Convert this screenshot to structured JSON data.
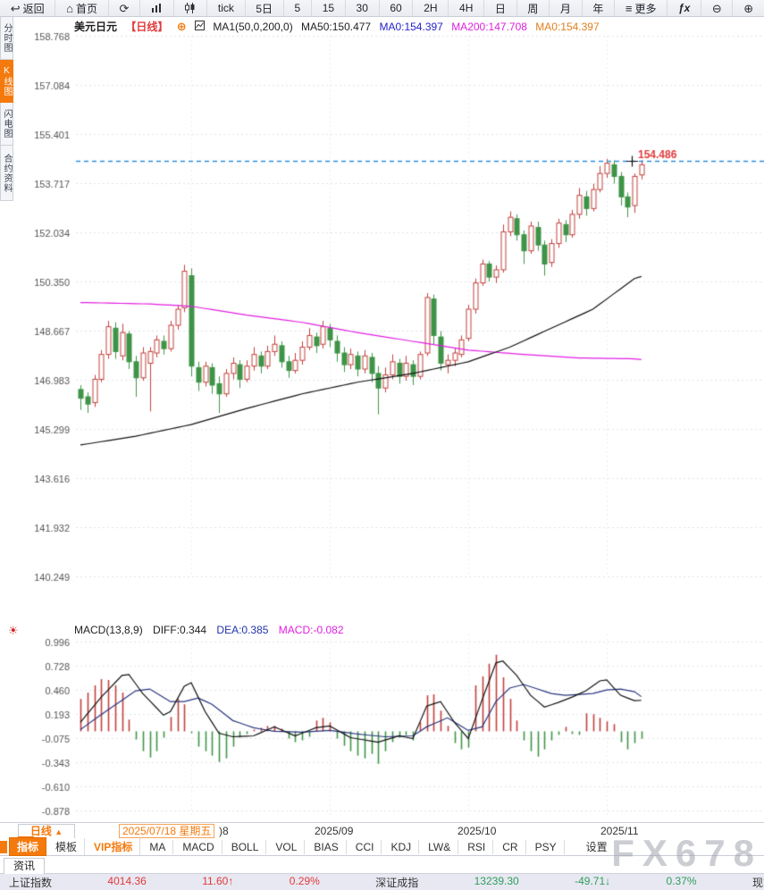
{
  "toolbar": {
    "items": [
      {
        "label": "返回",
        "icon": "back-arrow",
        "name": "back-button"
      },
      {
        "label": "首页",
        "icon": "home",
        "name": "home-button"
      },
      {
        "label": "",
        "icon": "refresh",
        "name": "refresh-button"
      },
      {
        "label": "",
        "icon": "bar-chart",
        "name": "bar-chart-button"
      },
      {
        "label": "",
        "icon": "candlestick",
        "name": "candlestick-button"
      },
      {
        "label": "tick",
        "icon": "",
        "name": "period-tick-button"
      },
      {
        "label": "5日",
        "icon": "",
        "name": "period-5d-button"
      },
      {
        "label": "5",
        "icon": "",
        "name": "period-5m-button"
      },
      {
        "label": "15",
        "icon": "",
        "name": "period-15m-button"
      },
      {
        "label": "30",
        "icon": "",
        "name": "period-30m-button"
      },
      {
        "label": "60",
        "icon": "",
        "name": "period-60m-button"
      },
      {
        "label": "2H",
        "icon": "",
        "name": "period-2h-button"
      },
      {
        "label": "4H",
        "icon": "",
        "name": "period-4h-button"
      },
      {
        "label": "日",
        "icon": "",
        "name": "period-day-button"
      },
      {
        "label": "周",
        "icon": "",
        "name": "period-week-button"
      },
      {
        "label": "月",
        "icon": "",
        "name": "period-month-button"
      },
      {
        "label": "年",
        "icon": "",
        "name": "period-year-button"
      },
      {
        "label": "更多",
        "icon": "menu",
        "name": "more-button"
      },
      {
        "label": "fx",
        "icon": "fx",
        "name": "formula-button"
      },
      {
        "label": "",
        "icon": "zoom-out",
        "name": "zoom-out-button"
      },
      {
        "label": "",
        "icon": "zoom-in",
        "name": "zoom-in-button"
      }
    ]
  },
  "left_rail": {
    "tabs": [
      {
        "label": "分时图",
        "active": false
      },
      {
        "label": "K线图",
        "active": true
      },
      {
        "label": "闪电图",
        "active": false
      },
      {
        "label": "合约资料",
        "active": false
      }
    ]
  },
  "main_header": {
    "symbol": "美元日元",
    "period": "【日线】",
    "plus": "⊕",
    "ma_settings": "MA1(50,0,200,0)",
    "ma50": "MA50:150.477",
    "ma0_blue": "MA0:154.397",
    "ma200": "MA200:147.708",
    "ma0_orange": "MA0:154.397"
  },
  "macd_header": {
    "title": "MACD(13,8,9)",
    "diff": "DIFF:0.344",
    "dea": "DEA:0.385",
    "macd": "MACD:-0.082"
  },
  "price_marker": {
    "value": "154.486"
  },
  "bottom_axis": {
    "period_button": "日线",
    "period_arrow": "▲",
    "date_box": "2025/07/18 星期五",
    "partial_label": ")8",
    "months": [
      {
        "label": "2025/09"
      },
      {
        "label": "2025/10"
      },
      {
        "label": "2025/11"
      }
    ]
  },
  "indicator_tabs": {
    "items": [
      {
        "label": "指标",
        "style": "active"
      },
      {
        "label": "模板",
        "style": ""
      },
      {
        "label": "VIP指标",
        "style": "vip"
      },
      {
        "label": "MA",
        "style": ""
      },
      {
        "label": "MACD",
        "style": ""
      },
      {
        "label": "BOLL",
        "style": ""
      },
      {
        "label": "VOL",
        "style": ""
      },
      {
        "label": "BIAS",
        "style": ""
      },
      {
        "label": "CCI",
        "style": ""
      },
      {
        "label": "KDJ",
        "style": ""
      },
      {
        "label": "LW&",
        "style": ""
      },
      {
        "label": "RSI",
        "style": ""
      },
      {
        "label": "CR",
        "style": ""
      },
      {
        "label": "PSY",
        "style": ""
      },
      {
        "label": "设置",
        "style": "gap"
      }
    ]
  },
  "news_tab": "资讯",
  "ticker": {
    "items": [
      {
        "name": "上证指数",
        "value": "4014.36",
        "change": "11.60↑",
        "pct": "0.29%",
        "trend": "up"
      },
      {
        "name": "深证成指",
        "value": "13239.30",
        "change": "-49.71↓",
        "pct": "0.37%",
        "trend": "down"
      },
      {
        "name": "现货黄金",
        "value": "",
        "change": "",
        "pct": "",
        "trend": "up"
      }
    ]
  },
  "watermark": "FX678",
  "colors": {
    "up_candle": "#c2403c",
    "down_candle": "#3f9447",
    "ma50_line": "#111111",
    "ma200_line": "#e21ee2",
    "diff_line": "#111111",
    "dea_line": "#27357f",
    "price_line": "#2e8fdd",
    "price_label": "#e03a3a",
    "accent_orange": "#f57a0d",
    "grid": "#dfe2ec",
    "axis_text": "#555555"
  },
  "chart_data": {
    "type": "candlestick",
    "title": "美元日元 日线 (USD/JPY daily)",
    "y_axis_main": [
      "158.768",
      "157.084",
      "155.401",
      "153.717",
      "152.034",
      "150.350",
      "148.667",
      "146.983",
      "145.299",
      "143.616",
      "141.932",
      "140.249"
    ],
    "y_axis_macd": [
      "0.996",
      "0.728",
      "0.460",
      "0.193",
      "-0.075",
      "-0.343",
      "-0.610",
      "-0.878"
    ],
    "price_line": 154.486,
    "month_ticks": [
      {
        "index": 16,
        "label": "2025/08"
      },
      {
        "index": 36,
        "label": "2025/09"
      },
      {
        "index": 56,
        "label": "2025/10"
      },
      {
        "index": 76,
        "label": "2025/11"
      }
    ],
    "candles": [
      [
        146.65,
        146.8,
        145.95,
        146.35
      ],
      [
        146.4,
        146.55,
        145.85,
        146.15
      ],
      [
        146.2,
        147.15,
        146.05,
        147.0
      ],
      [
        147.0,
        148.0,
        146.9,
        147.85
      ],
      [
        147.85,
        149.0,
        147.7,
        148.8
      ],
      [
        148.75,
        148.95,
        147.7,
        147.95
      ],
      [
        147.8,
        148.9,
        147.65,
        148.6
      ],
      [
        148.55,
        148.65,
        147.35,
        147.6
      ],
      [
        147.6,
        147.8,
        146.4,
        147.05
      ],
      [
        147.05,
        148.1,
        146.95,
        147.9
      ],
      [
        147.55,
        148.1,
        145.9,
        147.95
      ],
      [
        147.9,
        148.5,
        147.75,
        148.35
      ],
      [
        148.3,
        148.5,
        147.85,
        148.05
      ],
      [
        148.05,
        149.0,
        147.95,
        148.85
      ],
      [
        148.85,
        149.55,
        148.7,
        149.4
      ],
      [
        149.45,
        150.92,
        149.3,
        150.7
      ],
      [
        150.55,
        150.8,
        147.1,
        147.45
      ],
      [
        147.4,
        147.6,
        146.6,
        146.9
      ],
      [
        146.9,
        147.6,
        146.75,
        147.45
      ],
      [
        147.4,
        147.55,
        146.5,
        146.8
      ],
      [
        146.85,
        147.1,
        145.85,
        146.5
      ],
      [
        146.5,
        147.35,
        146.4,
        147.2
      ],
      [
        147.2,
        147.75,
        147.0,
        147.55
      ],
      [
        147.5,
        147.65,
        146.7,
        147.0
      ],
      [
        147.0,
        147.65,
        146.9,
        147.45
      ],
      [
        147.45,
        148.1,
        147.3,
        147.85
      ],
      [
        147.8,
        147.95,
        147.2,
        147.45
      ],
      [
        147.45,
        148.15,
        147.35,
        147.95
      ],
      [
        147.95,
        148.5,
        147.8,
        148.2
      ],
      [
        148.15,
        148.3,
        147.4,
        147.6
      ],
      [
        147.6,
        147.8,
        147.05,
        147.3
      ],
      [
        147.3,
        147.9,
        147.2,
        147.65
      ],
      [
        147.65,
        148.3,
        147.5,
        148.1
      ],
      [
        148.1,
        148.75,
        148.0,
        148.5
      ],
      [
        148.45,
        148.6,
        147.9,
        148.15
      ],
      [
        148.2,
        149.0,
        148.05,
        148.8
      ],
      [
        148.75,
        148.9,
        148.1,
        148.35
      ],
      [
        148.3,
        148.5,
        147.6,
        147.9
      ],
      [
        147.9,
        148.1,
        147.25,
        147.5
      ],
      [
        147.5,
        148.05,
        147.35,
        147.85
      ],
      [
        147.8,
        147.95,
        147.1,
        147.35
      ],
      [
        147.35,
        148.0,
        147.2,
        147.8
      ],
      [
        147.75,
        147.9,
        146.9,
        147.2
      ],
      [
        147.2,
        147.45,
        145.8,
        146.7
      ],
      [
        146.7,
        147.4,
        146.55,
        147.15
      ],
      [
        147.15,
        147.85,
        147.0,
        147.6
      ],
      [
        147.55,
        147.7,
        146.85,
        147.1
      ],
      [
        147.1,
        147.8,
        146.95,
        147.55
      ],
      [
        147.5,
        147.65,
        146.8,
        147.1
      ],
      [
        147.1,
        147.95,
        147.0,
        147.85
      ],
      [
        147.9,
        149.95,
        147.8,
        149.8
      ],
      [
        149.75,
        149.9,
        148.2,
        148.5
      ],
      [
        148.45,
        148.65,
        147.3,
        147.55
      ],
      [
        147.5,
        147.85,
        147.2,
        147.65
      ],
      [
        147.65,
        148.05,
        147.45,
        147.9
      ],
      [
        147.85,
        148.5,
        147.75,
        148.35
      ],
      [
        148.4,
        149.55,
        148.3,
        149.4
      ],
      [
        149.4,
        150.45,
        149.25,
        150.3
      ],
      [
        150.3,
        151.1,
        150.2,
        150.95
      ],
      [
        150.95,
        151.05,
        150.35,
        150.5
      ],
      [
        150.5,
        150.9,
        150.3,
        150.75
      ],
      [
        150.75,
        152.3,
        150.65,
        152.05
      ],
      [
        152.05,
        152.75,
        151.9,
        152.55
      ],
      [
        152.5,
        152.65,
        151.75,
        151.95
      ],
      [
        151.95,
        152.1,
        150.95,
        151.4
      ],
      [
        151.4,
        152.4,
        151.3,
        152.25
      ],
      [
        152.2,
        152.4,
        151.4,
        151.6
      ],
      [
        151.6,
        151.75,
        150.55,
        150.95
      ],
      [
        151.0,
        151.8,
        150.85,
        151.65
      ],
      [
        151.65,
        152.5,
        151.5,
        152.35
      ],
      [
        152.3,
        152.45,
        151.7,
        151.95
      ],
      [
        151.95,
        152.8,
        151.85,
        152.65
      ],
      [
        152.65,
        153.55,
        152.5,
        153.3
      ],
      [
        153.25,
        153.45,
        152.6,
        152.85
      ],
      [
        152.85,
        153.7,
        152.75,
        153.5
      ],
      [
        153.5,
        154.3,
        153.4,
        154.05
      ],
      [
        154.05,
        154.55,
        153.9,
        154.4
      ],
      [
        154.35,
        154.5,
        153.7,
        153.95
      ],
      [
        153.95,
        154.1,
        152.95,
        153.25
      ],
      [
        153.25,
        153.4,
        152.55,
        152.9
      ],
      [
        152.95,
        154.05,
        152.7,
        153.95
      ],
      [
        154.0,
        154.5,
        153.85,
        154.35
      ]
    ],
    "ma50_anchors": [
      [
        0,
        144.75
      ],
      [
        8,
        145.05
      ],
      [
        16,
        145.45
      ],
      [
        24,
        146.0
      ],
      [
        32,
        146.5
      ],
      [
        40,
        146.9
      ],
      [
        48,
        147.2
      ],
      [
        56,
        147.6
      ],
      [
        62,
        148.1
      ],
      [
        68,
        148.75
      ],
      [
        74,
        149.4
      ],
      [
        80,
        150.45
      ]
    ],
    "ma200_anchors": [
      [
        0,
        149.63
      ],
      [
        10,
        149.58
      ],
      [
        16,
        149.5
      ],
      [
        24,
        149.2
      ],
      [
        32,
        148.95
      ],
      [
        40,
        148.6
      ],
      [
        48,
        148.3
      ],
      [
        56,
        148.0
      ],
      [
        64,
        147.85
      ],
      [
        72,
        147.73
      ],
      [
        80,
        147.7
      ]
    ],
    "macd_hist": [
      0.36,
      0.43,
      0.51,
      0.58,
      0.57,
      0.51,
      0.43,
      0.13,
      -0.09,
      -0.22,
      -0.29,
      -0.22,
      -0.07,
      0.16,
      0.36,
      0.3,
      -0.02,
      -0.17,
      -0.22,
      -0.27,
      -0.34,
      -0.3,
      -0.17,
      -0.07,
      -0.03,
      0.02,
      0.04,
      0.06,
      0.06,
      0.03,
      -0.08,
      -0.12,
      -0.1,
      -0.06,
      0.12,
      0.15,
      0.1,
      -0.08,
      -0.16,
      -0.22,
      -0.27,
      -0.3,
      -0.25,
      -0.36,
      -0.22,
      -0.12,
      -0.07,
      -0.04,
      -0.1,
      0.1,
      0.4,
      0.41,
      0.23,
      0.06,
      -0.13,
      -0.2,
      -0.18,
      0.51,
      0.61,
      0.75,
      0.85,
      0.6,
      0.36,
      0.12,
      -0.1,
      -0.22,
      -0.28,
      -0.2,
      -0.1,
      -0.04,
      0.05,
      -0.03,
      -0.04,
      0.2,
      0.19,
      0.15,
      0.11,
      0.08,
      -0.12,
      -0.2,
      -0.13,
      -0.082
    ],
    "diff_anchors": [
      [
        0,
        0.1
      ],
      [
        3,
        0.38
      ],
      [
        6,
        0.62
      ],
      [
        7,
        0.63
      ],
      [
        9,
        0.42
      ],
      [
        12,
        0.18
      ],
      [
        13,
        0.22
      ],
      [
        15,
        0.5
      ],
      [
        16,
        0.54
      ],
      [
        18,
        0.22
      ],
      [
        20,
        -0.02
      ],
      [
        22,
        -0.06
      ],
      [
        25,
        -0.05
      ],
      [
        28,
        0.05
      ],
      [
        31,
        -0.05
      ],
      [
        34,
        0.04
      ],
      [
        36,
        0.06
      ],
      [
        39,
        -0.07
      ],
      [
        43,
        -0.12
      ],
      [
        46,
        -0.05
      ],
      [
        48,
        -0.08
      ],
      [
        50,
        0.28
      ],
      [
        52,
        0.33
      ],
      [
        54,
        0.1
      ],
      [
        56,
        -0.08
      ],
      [
        58,
        0.35
      ],
      [
        60,
        0.76
      ],
      [
        61,
        0.78
      ],
      [
        63,
        0.62
      ],
      [
        65,
        0.4
      ],
      [
        67,
        0.27
      ],
      [
        69,
        0.32
      ],
      [
        71,
        0.38
      ],
      [
        73,
        0.45
      ],
      [
        75,
        0.56
      ],
      [
        76,
        0.57
      ],
      [
        78,
        0.4
      ],
      [
        80,
        0.34
      ],
      [
        81,
        0.344
      ]
    ],
    "dea_anchors": [
      [
        0,
        0.02
      ],
      [
        4,
        0.24
      ],
      [
        8,
        0.45
      ],
      [
        10,
        0.47
      ],
      [
        13,
        0.33
      ],
      [
        15,
        0.33
      ],
      [
        17,
        0.37
      ],
      [
        19,
        0.3
      ],
      [
        22,
        0.12
      ],
      [
        25,
        0.04
      ],
      [
        28,
        0.0
      ],
      [
        32,
        -0.01
      ],
      [
        36,
        0.01
      ],
      [
        40,
        -0.03
      ],
      [
        44,
        -0.06
      ],
      [
        48,
        -0.05
      ],
      [
        50,
        0.05
      ],
      [
        53,
        0.15
      ],
      [
        56,
        0.01
      ],
      [
        58,
        0.05
      ],
      [
        60,
        0.33
      ],
      [
        62,
        0.48
      ],
      [
        64,
        0.52
      ],
      [
        66,
        0.47
      ],
      [
        68,
        0.42
      ],
      [
        70,
        0.4
      ],
      [
        72,
        0.41
      ],
      [
        74,
        0.42
      ],
      [
        76,
        0.46
      ],
      [
        78,
        0.47
      ],
      [
        80,
        0.44
      ],
      [
        81,
        0.385
      ]
    ]
  }
}
